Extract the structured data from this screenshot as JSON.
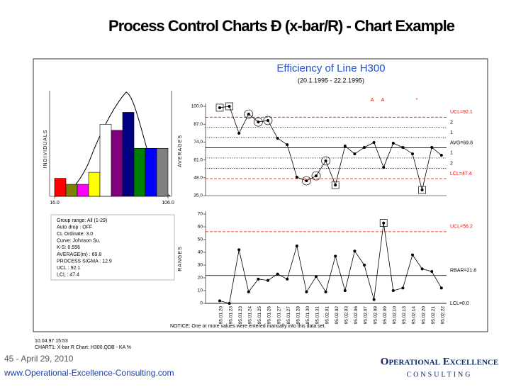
{
  "header": {
    "title": "Process Control Charts Ð (x-bar/R) - Chart Example"
  },
  "chart_frame": {
    "title": "Efficiency of Line H300",
    "subtitle": "(20.1.1995 - 22.2.1995)",
    "stamp": [
      "10.04.97 15:53",
      "CHART1: X-bar R Chart:  H300.QDB - KA %"
    ],
    "notice": "NOTICE: One or more values were entered manually into this data set.",
    "info": [
      "Group range: All (1-29)",
      "Auto drop  : OFF",
      "CL Ordinate: 3.0",
      "Curve: Johnson Su.",
      "K-S: 0.556",
      "AVERAGE(m) : 69.8",
      "PROCESS SIGMA : 12.9",
      "UCL : 92.1",
      "LCL : 47.4"
    ]
  },
  "chart_data": [
    {
      "type": "histogram",
      "ylabel": "INDIVIDUALS",
      "bins": [
        16,
        25,
        34,
        43,
        52,
        61,
        70,
        79,
        88,
        97,
        106
      ],
      "values": [
        3,
        2,
        2,
        4,
        12,
        11,
        14,
        8,
        8,
        8
      ],
      "colors": [
        "#ff0000",
        "#808000",
        "#ff00ff",
        "#ffff00",
        "#ffffff",
        "#800080",
        "#000080",
        "#008000",
        "#0000ff",
        "#808080"
      ],
      "xlim": [
        16,
        106
      ],
      "xticks": [
        {
          "value": 16,
          "label": "16.0"
        },
        {
          "value": 106,
          "label": "106.0"
        }
      ],
      "ylim": [
        0,
        15
      ]
    },
    {
      "type": "line",
      "ylabel": "AVERAGES",
      "annotations": [
        "A",
        "A",
        "*"
      ],
      "values": [
        99,
        100,
        80.4,
        94.3,
        88.6,
        89.7,
        76.8,
        72.1,
        48.4,
        45.8,
        49.4,
        60.3,
        42.7,
        71.1,
        65.4,
        70.1,
        73.7,
        55.6,
        73.2,
        70.1,
        65.4,
        39.1,
        70.1,
        64.4
      ],
      "boxed_points": [
        0,
        1,
        12,
        21
      ],
      "circled_points": [
        3,
        4,
        5,
        9,
        10,
        11
      ],
      "ylim": [
        35,
        100
      ],
      "yticks": [
        {
          "value": 35,
          "label": "35.0"
        },
        {
          "value": 48,
          "label": "48.0"
        },
        {
          "value": 61,
          "label": "61.0"
        },
        {
          "value": 74,
          "label": "74.0"
        },
        {
          "value": 87,
          "label": "87.0"
        },
        {
          "value": 100,
          "label": "100.0"
        }
      ],
      "reference_lines": [
        {
          "value": 92.1,
          "label": "UCL=92.1",
          "color": "#ff0000",
          "style": "dashed"
        },
        {
          "value": 84.7,
          "label": "2",
          "color": "#000000",
          "style": "dotted"
        },
        {
          "value": 77.2,
          "label": "1",
          "color": "#000000",
          "style": "dotted"
        },
        {
          "value": 69.8,
          "label": "AVG=69.8",
          "color": "#000000",
          "style": "solid"
        },
        {
          "value": 62.4,
          "label": "1",
          "color": "#000000",
          "style": "dotted"
        },
        {
          "value": 54.9,
          "label": "2",
          "color": "#000000",
          "style": "dotted"
        },
        {
          "value": 47.4,
          "label": "LCL=47.4",
          "color": "#ff0000",
          "style": "dashed"
        }
      ]
    },
    {
      "type": "line",
      "ylabel": "RANGES",
      "categories": [
        "95.01.20",
        "95.01.23",
        "95.01.23",
        "95.01.24",
        "95.01.25",
        "95.01.26",
        "95.01.27",
        "95.01.27",
        "95.01.28",
        "95.01.30",
        "95.01.31",
        "95.02.01",
        "95.02.02",
        "95.02.03",
        "95.02.06",
        "95.02.07",
        "95.02.08",
        "95.02.09",
        "95.02.10",
        "95.02.13",
        "95.02.14",
        "95.02.20",
        "95.02.21",
        "95.02.22"
      ],
      "values": [
        2,
        0,
        42,
        9,
        19,
        18,
        23,
        19,
        45,
        9,
        21,
        9,
        37,
        10,
        41,
        30,
        3,
        63,
        10,
        12,
        38,
        27,
        25,
        12
      ],
      "boxed_points": [
        17
      ],
      "ylim": [
        0,
        70
      ],
      "yticks": [
        0,
        10,
        20,
        30,
        40,
        50,
        60,
        70
      ],
      "reference_lines": [
        {
          "value": 56.2,
          "label": "UCL=56.2",
          "color": "#ff0000",
          "style": "dashed"
        },
        {
          "value": 21.8,
          "label": "RBAR=21.8",
          "color": "#000000",
          "style": "solid"
        },
        {
          "value": 0,
          "label": "LCL=0.0",
          "color": "#000000",
          "style": "solid"
        }
      ]
    }
  ],
  "footer": {
    "page": "45 - April 29, 2010",
    "url": "www.Operational-Excellence-Consulting.com",
    "logo": "Operational Excellence",
    "logo_sub": "CONSULTING"
  }
}
